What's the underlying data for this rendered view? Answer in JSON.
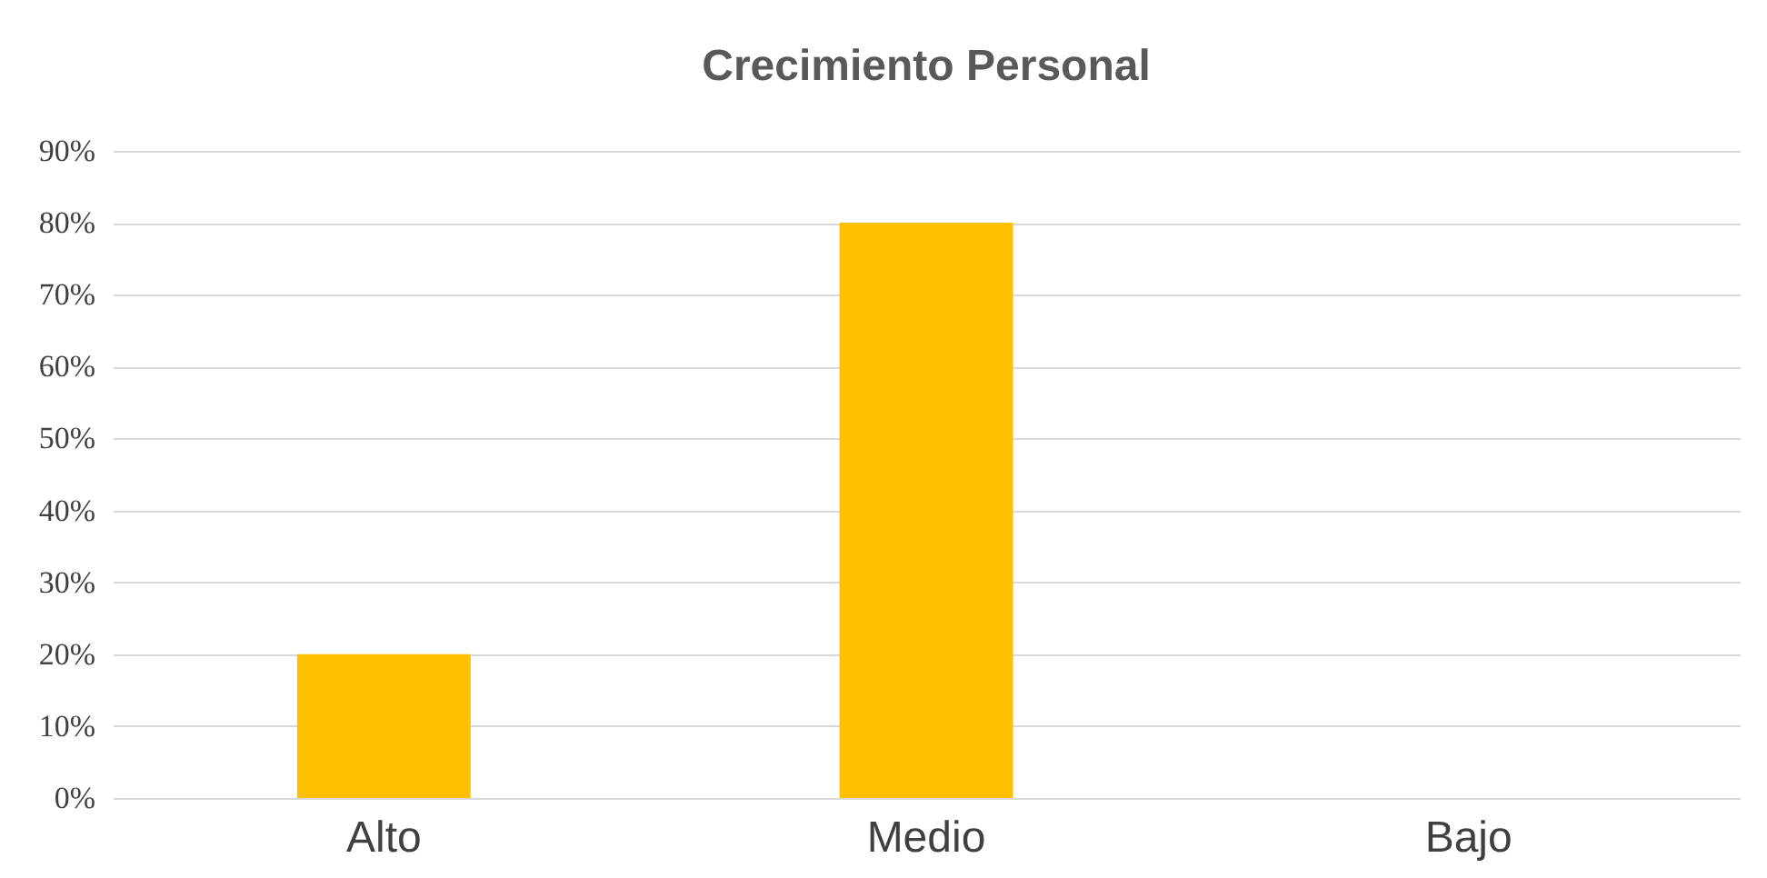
{
  "chart_data": {
    "type": "bar",
    "title": "Crecimiento Personal",
    "categories": [
      "Alto",
      "Medio",
      "Bajo"
    ],
    "values": [
      20,
      80,
      0
    ],
    "color": "#ffc000",
    "ylim": [
      0,
      90
    ],
    "yticks": [
      {
        "value": 0,
        "label": "0%"
      },
      {
        "value": 10,
        "label": "10%"
      },
      {
        "value": 20,
        "label": "20%"
      },
      {
        "value": 30,
        "label": "30%"
      },
      {
        "value": 40,
        "label": "40%"
      },
      {
        "value": 50,
        "label": "50%"
      },
      {
        "value": 60,
        "label": "60%"
      },
      {
        "value": 70,
        "label": "70%"
      },
      {
        "value": 80,
        "label": "80%"
      },
      {
        "value": 90,
        "label": "90%"
      }
    ],
    "grid": "y"
  }
}
